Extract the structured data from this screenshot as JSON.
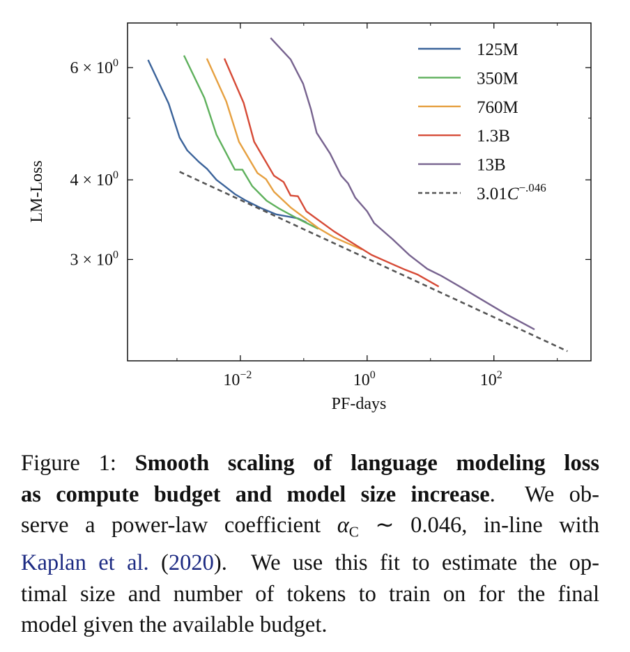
{
  "chart_data": {
    "type": "line",
    "xscale": "log",
    "yscale": "log",
    "xlabel": "PF-days",
    "ylabel": "LM-Loss",
    "xlim": [
      0.000166,
      3400
    ],
    "ylim": [
      2.08,
      7.05
    ],
    "grid": false,
    "legend_position": "top-right",
    "x_ticks": [
      {
        "value": 0.01,
        "base": "10",
        "exp": "−2"
      },
      {
        "value": 1,
        "base": "10",
        "exp": "0"
      },
      {
        "value": 100,
        "base": "10",
        "exp": "2"
      }
    ],
    "y_ticks": [
      {
        "value": 6,
        "base": "6 × 10",
        "exp": "0"
      },
      {
        "value": 4,
        "base": "4 × 10",
        "exp": "0"
      },
      {
        "value": 3,
        "base": "3 × 10",
        "exp": "0"
      }
    ],
    "series": [
      {
        "name": "125M",
        "color": "#3b639a",
        "dashed": false,
        "x": [
          0.00035,
          0.00074,
          0.0011,
          0.00145,
          0.0022,
          0.003,
          0.0042,
          0.0053,
          0.0082,
          0.0123,
          0.0214,
          0.037,
          0.081,
          0.11
        ],
        "y": [
          6.17,
          5.27,
          4.66,
          4.45,
          4.27,
          4.16,
          4.0,
          3.93,
          3.8,
          3.71,
          3.61,
          3.53,
          3.48,
          3.43
        ]
      },
      {
        "name": "350M",
        "color": "#5eb05c",
        "dashed": false,
        "x": [
          0.00129,
          0.0027,
          0.0042,
          0.0082,
          0.0108,
          0.0154,
          0.026,
          0.04,
          0.079,
          0.17
        ],
        "y": [
          6.27,
          5.38,
          4.71,
          4.15,
          4.15,
          3.91,
          3.71,
          3.61,
          3.48,
          3.35
        ]
      },
      {
        "name": "760M",
        "color": "#e6a040",
        "dashed": false,
        "x": [
          0.00296,
          0.006,
          0.0095,
          0.0186,
          0.0254,
          0.034,
          0.062,
          0.17,
          0.3,
          0.83
        ],
        "y": [
          6.2,
          5.31,
          4.59,
          4.1,
          4.01,
          3.83,
          3.62,
          3.36,
          3.25,
          3.11
        ]
      },
      {
        "name": "1.3B",
        "color": "#d64a36",
        "dashed": false,
        "x": [
          0.0056,
          0.0113,
          0.0165,
          0.034,
          0.048,
          0.062,
          0.081,
          0.11,
          0.3,
          1.17,
          2.5,
          4.0,
          6.3,
          13.5
        ],
        "y": [
          6.2,
          5.28,
          4.59,
          4.06,
          3.97,
          3.78,
          3.77,
          3.57,
          3.32,
          3.05,
          2.95,
          2.89,
          2.84,
          2.72
        ]
      },
      {
        "name": "13B",
        "color": "#77638f",
        "dashed": false,
        "x": [
          0.03,
          0.062,
          0.098,
          0.13,
          0.16,
          0.26,
          0.39,
          0.5,
          0.65,
          1.0,
          1.29,
          2.5,
          4.6,
          8.9,
          14.6,
          31,
          62,
          158,
          437
        ],
        "y": [
          6.68,
          6.18,
          5.66,
          5.16,
          4.74,
          4.4,
          4.06,
          3.95,
          3.75,
          3.57,
          3.42,
          3.23,
          3.05,
          2.9,
          2.83,
          2.71,
          2.6,
          2.46,
          2.33
        ]
      },
      {
        "name": "3.01C^-.046",
        "label_base": "3.01",
        "label_var": "C",
        "label_exp": "−.046",
        "color": "#555555",
        "dashed": true,
        "fit": {
          "a": 3.01,
          "b": -0.046
        },
        "x_range": [
          0.0011,
          1450
        ]
      }
    ]
  },
  "caption": {
    "lines": [
      [
        {
          "t": "Figure 1: ",
          "s": ""
        },
        {
          "t": "Smooth scaling of language modeling loss",
          "s": "b"
        }
      ],
      [
        {
          "t": "as compute budget and model size increase",
          "s": "b"
        },
        {
          "t": ".  We ob-",
          "s": ""
        }
      ],
      [
        {
          "t": "serve a power-law coefficient ",
          "s": ""
        },
        {
          "t": "α",
          "s": "it"
        },
        {
          "t": "C",
          "s": "sub"
        },
        {
          "t": " ∼ 0.046, in-line with",
          "s": ""
        }
      ],
      [
        {
          "t": "Kaplan et al.",
          "s": "link"
        },
        {
          "t": " (",
          "s": ""
        },
        {
          "t": "2020",
          "s": "link"
        },
        {
          "t": ").  We use this fit to estimate the op-",
          "s": ""
        }
      ],
      [
        {
          "t": "timal size and number of tokens to train on for the final",
          "s": ""
        }
      ],
      [
        {
          "t": "model given the available budget.",
          "s": ""
        }
      ]
    ]
  }
}
